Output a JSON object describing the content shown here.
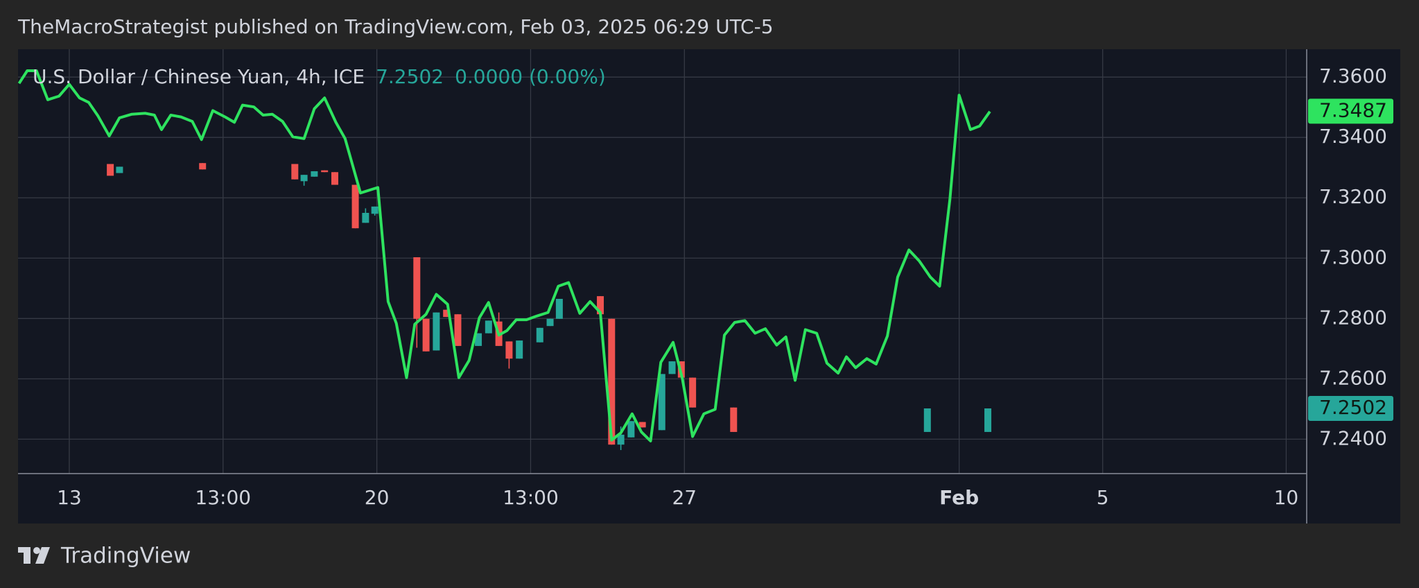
{
  "chart_data": {
    "type": "line",
    "publisher_note": "TheMacroStrategist published on TradingView.com, Feb 03, 2025 06:29 UTC-5",
    "title": "U.S. Dollar / Chinese Yuan, 4h, ICE",
    "price": "7.2502",
    "change": "0.0000 (0.00%)",
    "brand": "TradingView",
    "xlim": [
      -5,
      120.7
    ],
    "xticks": [
      {
        "value": 0,
        "label": "13"
      },
      {
        "value": 15,
        "label": "13:00"
      },
      {
        "value": 30,
        "label": "20"
      },
      {
        "value": 45,
        "label": "13:00"
      },
      {
        "value": 60,
        "label": "27"
      },
      {
        "value": 86.8,
        "label": "Feb"
      },
      {
        "value": 100.8,
        "label": "5"
      },
      {
        "value": 118.7,
        "label": "10"
      }
    ],
    "ylim": [
      7.2286,
      7.369
    ],
    "yticks": [
      {
        "value": 7.24,
        "label": "7.2400"
      },
      {
        "value": 7.26,
        "label": "7.2600"
      },
      {
        "value": 7.28,
        "label": "7.2800"
      },
      {
        "value": 7.3,
        "label": "7.3000"
      },
      {
        "value": 7.32,
        "label": "7.3200"
      },
      {
        "value": 7.34,
        "label": "7.3400"
      },
      {
        "value": 7.36,
        "label": "7.3600"
      }
    ],
    "grid": true,
    "series": [
      {
        "color": "#2ee35f",
        "x": [
          -4.9,
          -4.1,
          -3.2,
          -2.1,
          -1.0,
          0,
          1.0,
          1.9,
          2.8,
          3.9,
          4.9,
          6.1,
          7.4,
          8.3,
          9.0,
          9.9,
          10.9,
          12.0,
          12.9,
          14.0,
          15.2,
          16.1,
          16.9,
          18.0,
          18.9,
          19.8,
          20.8,
          21.8,
          22.9,
          23.9,
          24.9,
          26.0,
          26.9,
          28.4,
          30.1,
          31.1,
          31.9,
          32.9,
          33.7,
          34.8,
          35.8,
          36.9,
          38.0,
          39.0,
          40.0,
          40.9,
          41.9,
          42.7,
          43.6,
          44.6,
          45.6,
          46.7,
          47.7,
          48.7,
          49.8,
          50.8,
          51.8,
          52.9,
          53.8,
          54.9,
          55.8,
          56.7,
          57.7,
          58.9,
          59.8,
          60.8,
          61.9,
          63.0,
          63.9,
          64.9,
          65.9,
          66.9,
          67.9,
          69.0,
          69.9,
          70.8,
          71.8,
          72.9,
          73.9,
          75.0,
          75.8,
          76.7,
          77.8,
          78.7,
          79.8,
          80.8,
          81.9,
          82.9,
          84.0,
          84.9,
          85.9,
          86.8,
          87.9,
          88.8,
          89.8
        ],
        "values": [
          7.3579,
          7.3621,
          7.3621,
          7.3525,
          7.3537,
          7.3576,
          7.3531,
          7.3516,
          7.3471,
          7.3405,
          7.3465,
          7.3477,
          7.348,
          7.3474,
          7.3426,
          7.3474,
          7.3468,
          7.3453,
          7.3393,
          7.3489,
          7.3468,
          7.345,
          7.3507,
          7.3501,
          7.3474,
          7.3477,
          7.3453,
          7.3402,
          7.3396,
          7.3495,
          7.3531,
          7.345,
          7.3396,
          7.3216,
          7.3234,
          7.2856,
          7.2784,
          7.2604,
          7.2781,
          7.2814,
          7.288,
          7.2847,
          7.2604,
          7.2661,
          7.2802,
          7.2853,
          7.2745,
          7.276,
          7.2796,
          7.2796,
          7.2808,
          7.282,
          7.2907,
          7.2919,
          7.2817,
          7.2856,
          7.282,
          7.2397,
          7.2421,
          7.2484,
          7.2424,
          7.2394,
          7.2655,
          7.2721,
          7.2601,
          7.2409,
          7.2484,
          7.2499,
          7.2745,
          7.2787,
          7.2793,
          7.2751,
          7.2766,
          7.2712,
          7.2739,
          7.2595,
          7.2763,
          7.2751,
          7.2652,
          7.2619,
          7.2673,
          7.2637,
          7.2667,
          7.2649,
          7.2742,
          7.2937,
          7.3027,
          7.2991,
          7.2937,
          7.2907,
          7.3195,
          7.354,
          7.3426,
          7.3438,
          7.3486
        ]
      }
    ],
    "candles": {
      "up_color": "#26a69a",
      "down_color": "#ef5350",
      "x": [
        4.0,
        4.9,
        13.0,
        22.0,
        22.9,
        23.9,
        24.9,
        25.9,
        27.9,
        28.9,
        29.8,
        33.9,
        34.8,
        35.8,
        36.8,
        37.9,
        39.9,
        40.9,
        41.9,
        42.9,
        43.9,
        45.9,
        46.9,
        47.8,
        51.8,
        52.9,
        53.8,
        54.8,
        55.9,
        57.8,
        58.8,
        59.7,
        60.8,
        64.8,
        83.7,
        89.6
      ],
      "open": [
        7.3312,
        7.3282,
        7.3315,
        7.3312,
        7.3255,
        7.327,
        7.3291,
        7.3285,
        7.3243,
        7.3117,
        7.3147,
        7.3003,
        7.2799,
        7.2694,
        7.2829,
        7.2814,
        7.2709,
        7.2751,
        7.279,
        7.2724,
        7.2667,
        7.2721,
        7.2775,
        7.2799,
        7.2874,
        7.2799,
        7.2382,
        7.2406,
        7.2457,
        7.243,
        7.2616,
        7.2658,
        7.2604,
        7.2505,
        7.2424,
        7.2424
      ],
      "high": [
        7.3312,
        7.3303,
        7.3315,
        7.3312,
        7.3276,
        7.3288,
        7.3291,
        7.3285,
        7.3243,
        7.3165,
        7.3171,
        7.3003,
        7.2799,
        7.282,
        7.2829,
        7.2814,
        7.2751,
        7.2793,
        7.282,
        7.2724,
        7.2727,
        7.2769,
        7.2799,
        7.2865,
        7.2874,
        7.2799,
        7.2442,
        7.246,
        7.2457,
        7.2616,
        7.2658,
        7.2658,
        7.2604,
        7.2505,
        7.2502,
        7.2502
      ],
      "low": [
        7.3273,
        7.3282,
        7.3294,
        7.3261,
        7.324,
        7.327,
        7.3285,
        7.3243,
        7.3099,
        7.3117,
        7.3141,
        7.2703,
        7.2691,
        7.2694,
        7.2805,
        7.2709,
        7.2709,
        7.2751,
        7.2709,
        7.2634,
        7.2667,
        7.2721,
        7.2775,
        7.2799,
        7.2814,
        7.2382,
        7.2364,
        7.2406,
        7.2439,
        7.243,
        7.2616,
        7.2604,
        7.2505,
        7.2424,
        7.2424,
        7.2424
      ],
      "close": [
        7.3273,
        7.3303,
        7.3294,
        7.3261,
        7.3276,
        7.3288,
        7.3285,
        7.3243,
        7.3099,
        7.315,
        7.3171,
        7.2799,
        7.2691,
        7.282,
        7.2805,
        7.2709,
        7.2751,
        7.2793,
        7.2709,
        7.2667,
        7.2727,
        7.2769,
        7.2799,
        7.2865,
        7.2814,
        7.2382,
        7.2415,
        7.246,
        7.2439,
        7.2616,
        7.2658,
        7.2604,
        7.2505,
        7.2424,
        7.2502,
        7.2502
      ]
    },
    "last_values": [
      {
        "value": 7.3487,
        "color": "#2ee35f"
      },
      {
        "value": 7.2502,
        "color": "#26a69a"
      }
    ]
  }
}
